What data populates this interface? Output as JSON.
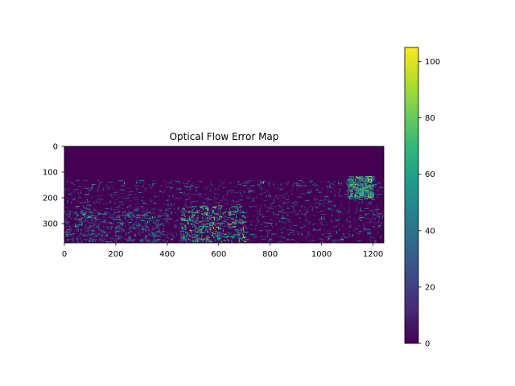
{
  "chart_data": {
    "type": "heatmap",
    "title": "Optical Flow Error Map",
    "xlabel": "",
    "ylabel": "",
    "x_ticks": [
      0,
      200,
      400,
      600,
      800,
      1000,
      1200
    ],
    "y_ticks": [
      0,
      100,
      200,
      300
    ],
    "xlim": [
      0,
      1242
    ],
    "ylim": [
      375,
      0
    ],
    "colorbar": {
      "colormap": "viridis",
      "ticks": [
        0,
        20,
        40,
        60,
        80,
        100
      ],
      "range": [
        0,
        105
      ]
    },
    "background_value": 0,
    "dense_band_y": [
      130,
      375
    ],
    "hotspot_regions": [
      {
        "x_range": [
          450,
          700
        ],
        "y_range": [
          230,
          370
        ],
        "typical_value": 60
      },
      {
        "x_range": [
          1100,
          1200
        ],
        "y_range": [
          115,
          200
        ],
        "typical_value": 55
      },
      {
        "x_range": [
          0,
          400
        ],
        "y_range": [
          250,
          375
        ],
        "typical_value": 35
      }
    ],
    "grid": false
  },
  "colors": {
    "viridis": [
      "#440154",
      "#482878",
      "#3e4989",
      "#31688e",
      "#26828e",
      "#1f9e89",
      "#35b779",
      "#6ece58",
      "#b5de2b",
      "#fde725"
    ]
  }
}
